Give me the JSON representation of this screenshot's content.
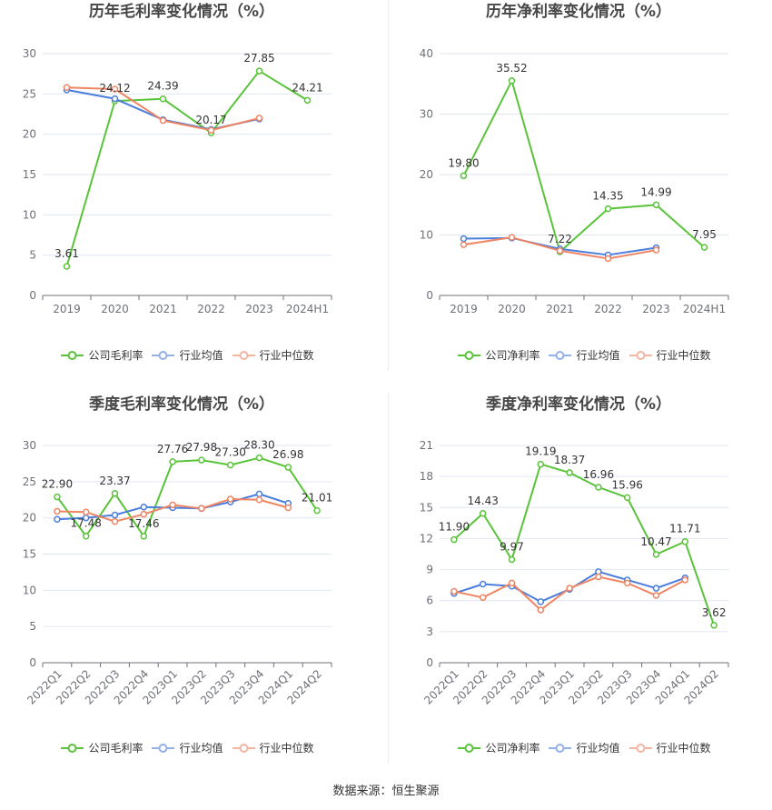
{
  "footer": {
    "source": "数据来源：恒生聚源"
  },
  "chart_data": [
    {
      "type": "line",
      "title": "历年毛利率变化情况（%）",
      "categories": [
        "2019",
        "2020",
        "2021",
        "2022",
        "2023",
        "2024H1"
      ],
      "ylim": [
        0,
        30
      ],
      "yticks": [
        0,
        5,
        10,
        15,
        20,
        25,
        30
      ],
      "grid": true,
      "legend": "bottom",
      "series": [
        {
          "name": "公司毛利率",
          "color": "#59c33a",
          "show_labels": true,
          "values": [
            3.61,
            24.12,
            24.39,
            20.17,
            27.85,
            24.21
          ]
        },
        {
          "name": "行业均值",
          "color": "#4a7ddc",
          "show_labels": false,
          "values": [
            25.5,
            24.4,
            21.8,
            20.6,
            21.9,
            null
          ]
        },
        {
          "name": "行业中位数",
          "color": "#ef8563",
          "show_labels": false,
          "values": [
            25.8,
            25.6,
            21.7,
            20.5,
            22.0,
            null
          ]
        }
      ]
    },
    {
      "type": "line",
      "title": "历年净利率变化情况（%）",
      "categories": [
        "2019",
        "2020",
        "2021",
        "2022",
        "2023",
        "2024H1"
      ],
      "ylim": [
        0,
        40
      ],
      "yticks": [
        0,
        10,
        20,
        30,
        40
      ],
      "grid": true,
      "legend": "bottom",
      "series": [
        {
          "name": "公司净利率",
          "color": "#59c33a",
          "show_labels": true,
          "values": [
            19.8,
            35.52,
            7.22,
            14.35,
            14.99,
            7.95
          ]
        },
        {
          "name": "行业均值",
          "color": "#4a7ddc",
          "show_labels": false,
          "values": [
            9.4,
            9.5,
            7.7,
            6.7,
            7.9,
            null
          ]
        },
        {
          "name": "行业中位数",
          "color": "#ef8563",
          "show_labels": false,
          "values": [
            8.4,
            9.6,
            7.4,
            6.1,
            7.5,
            null
          ]
        }
      ]
    },
    {
      "type": "line",
      "title": "季度毛利率变化情况（%）",
      "categories": [
        "2022Q1",
        "2022Q2",
        "2022Q3",
        "2022Q4",
        "2023Q1",
        "2023Q2",
        "2023Q3",
        "2023Q4",
        "2024Q1",
        "2024Q2"
      ],
      "ylim": [
        0,
        30
      ],
      "yticks": [
        0,
        5,
        10,
        15,
        20,
        25,
        30
      ],
      "grid": true,
      "legend": "bottom",
      "series": [
        {
          "name": "公司毛利率",
          "color": "#59c33a",
          "show_labels": true,
          "values": [
            22.9,
            17.48,
            23.37,
            17.46,
            27.76,
            27.98,
            27.3,
            28.3,
            26.98,
            21.01
          ]
        },
        {
          "name": "行业均值",
          "color": "#4a7ddc",
          "show_labels": false,
          "values": [
            19.8,
            20.0,
            20.4,
            21.5,
            21.4,
            21.3,
            22.2,
            23.3,
            22.0,
            null
          ]
        },
        {
          "name": "行业中位数",
          "color": "#ef8563",
          "show_labels": false,
          "values": [
            20.9,
            20.8,
            19.5,
            20.5,
            21.8,
            21.3,
            22.6,
            22.5,
            21.4,
            null
          ]
        }
      ]
    },
    {
      "type": "line",
      "title": "季度净利率变化情况（%）",
      "categories": [
        "2022Q1",
        "2022Q2",
        "2022Q3",
        "2022Q4",
        "2023Q1",
        "2023Q2",
        "2023Q3",
        "2023Q4",
        "2024Q1",
        "2024Q2"
      ],
      "ylim": [
        0,
        21
      ],
      "yticks": [
        0,
        3,
        6,
        9,
        12,
        15,
        18,
        21
      ],
      "grid": true,
      "legend": "bottom",
      "series": [
        {
          "name": "公司净利率",
          "color": "#59c33a",
          "show_labels": true,
          "values": [
            11.9,
            14.43,
            9.97,
            19.19,
            18.37,
            16.96,
            15.96,
            10.47,
            11.71,
            3.62
          ]
        },
        {
          "name": "行业均值",
          "color": "#4a7ddc",
          "show_labels": false,
          "values": [
            6.7,
            7.6,
            7.4,
            5.9,
            7.1,
            8.8,
            8.0,
            7.2,
            8.2,
            null
          ]
        },
        {
          "name": "行业中位数",
          "color": "#ef8563",
          "show_labels": false,
          "values": [
            6.9,
            6.3,
            7.7,
            5.1,
            7.2,
            8.3,
            7.7,
            6.5,
            8.0,
            null
          ]
        }
      ]
    }
  ]
}
